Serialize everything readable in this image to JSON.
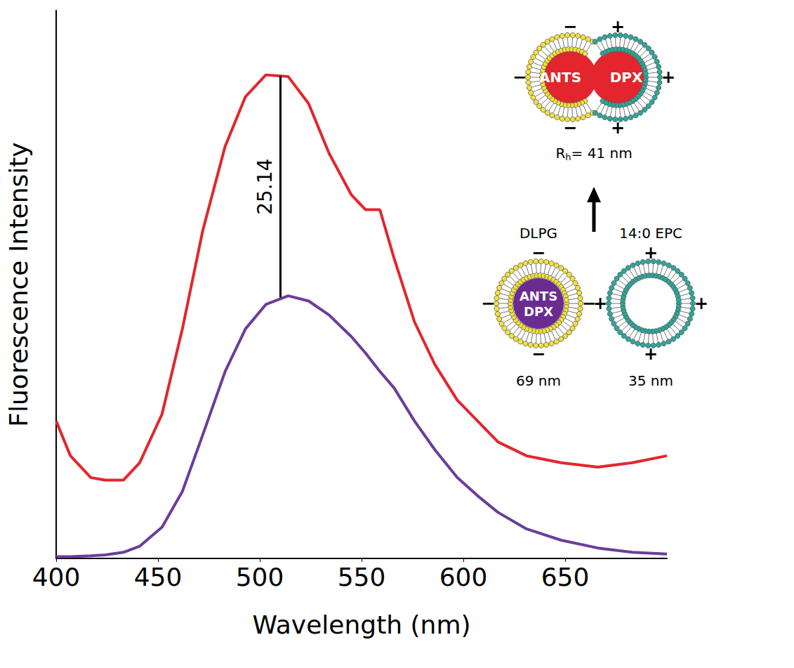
{
  "chart_data": {
    "type": "line",
    "x_label": "Wavelength (nm)",
    "y_label": "Fluorescence Intensity",
    "x": [
      400,
      407,
      417,
      424,
      433,
      441,
      452,
      462,
      472,
      483,
      493,
      503,
      514,
      524,
      534,
      545,
      552,
      559,
      566,
      576,
      586,
      597,
      607,
      617,
      631,
      648,
      666,
      683,
      700
    ],
    "series": [
      {
        "color": "#e3262d",
        "values": [
          15.8,
          11.8,
          9.3,
          9.0,
          9.0,
          11.0,
          16.6,
          26.4,
          37.7,
          47.4,
          53.1,
          55.6,
          55.4,
          52.3,
          46.6,
          41.8,
          40.1,
          40.1,
          34.5,
          27.2,
          22.3,
          18.2,
          15.8,
          13.4,
          11.8,
          11.0,
          10.5,
          11.0,
          11.8
        ]
      },
      {
        "color": "#6a3d9a",
        "values": [
          0.2,
          0.2,
          0.3,
          0.4,
          0.7,
          1.4,
          3.6,
          7.7,
          14.2,
          21.5,
          26.4,
          29.2,
          30.2,
          29.6,
          28.0,
          25.5,
          23.6,
          21.5,
          19.6,
          15.8,
          12.5,
          9.3,
          7.2,
          5.3,
          3.4,
          2.1,
          1.2,
          0.7,
          0.5
        ]
      }
    ],
    "xlim": [
      400,
      700
    ],
    "xticks": [
      400,
      450,
      500,
      550,
      600,
      650
    ],
    "ylim": [
      0,
      63
    ],
    "tick_labels": "x",
    "grid": false,
    "bracket": {
      "text": "25.14",
      "x": 510,
      "y_low": 30.0,
      "y_high": 55.5
    }
  },
  "diagram": {
    "left_vesicle": {
      "name": "DLPG",
      "contents": [
        "ANTS",
        "DPX"
      ],
      "size": "69 nm",
      "charge": "−"
    },
    "right_vesicle": {
      "name": "14:0 EPC",
      "size": "35 nm",
      "charge": "+"
    },
    "fused_vesicle": {
      "contents": [
        "ANTS",
        "DPX"
      ],
      "size": {
        "symbol": "R",
        "subscript": "h",
        "rest": "= 41 nm"
      }
    }
  }
}
